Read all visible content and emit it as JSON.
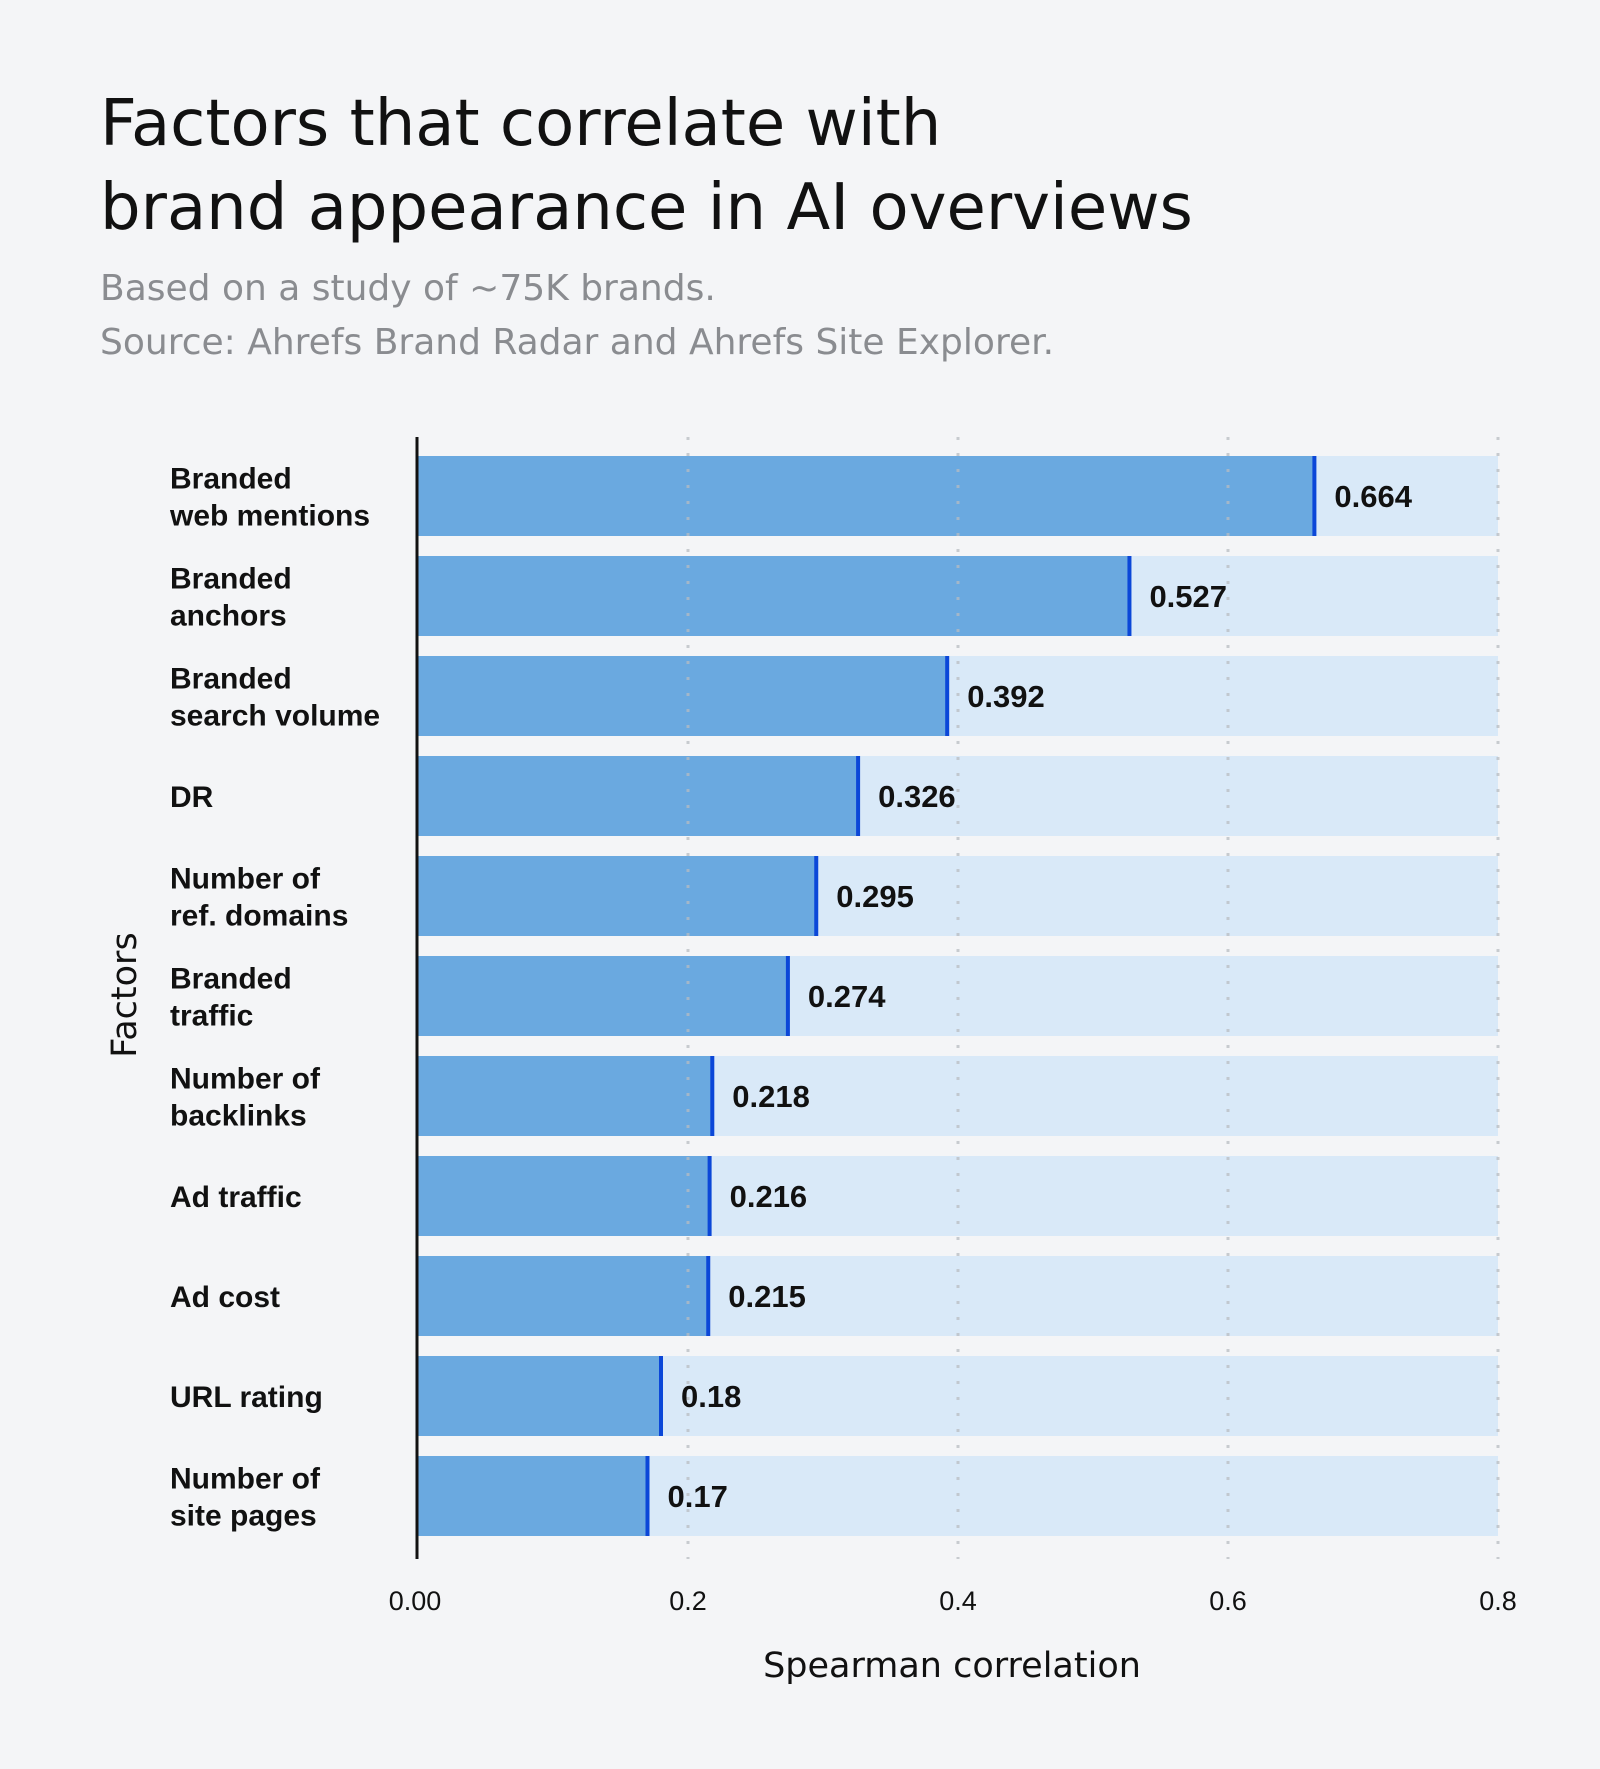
{
  "chart_data": {
    "type": "bar",
    "orientation": "horizontal",
    "title": "Factors that correlate with brand appearance in AI overviews",
    "title_lines": [
      "Factors that correlate with",
      "brand appearance in AI overviews"
    ],
    "subtitle_lines": [
      "Based on a study of ~75K brands.",
      "Source: Ahrefs Brand Radar and Ahrefs Site Explorer."
    ],
    "xlabel": "Spearman correlation",
    "ylabel": "Factors",
    "xlim": [
      0,
      0.8
    ],
    "xticks": [
      "0.00",
      "0.2",
      "0.4",
      "0.6",
      "0.8"
    ],
    "xtick_values": [
      0,
      0.2,
      0.4,
      0.6,
      0.8
    ],
    "grid": "vertical dotted",
    "categories": [
      [
        "Branded",
        "web mentions"
      ],
      [
        "Branded",
        "anchors"
      ],
      [
        "Branded",
        "search volume"
      ],
      [
        "DR"
      ],
      [
        "Number of",
        "ref. domains"
      ],
      [
        "Branded",
        "traffic"
      ],
      [
        "Number of",
        "backlinks"
      ],
      [
        "Ad traffic"
      ],
      [
        "Ad cost"
      ],
      [
        "URL rating"
      ],
      [
        "Number of",
        "site pages"
      ]
    ],
    "values": [
      0.664,
      0.527,
      0.392,
      0.326,
      0.295,
      0.274,
      0.218,
      0.216,
      0.215,
      0.18,
      0.17
    ],
    "value_labels": [
      "0.664",
      "0.527",
      "0.392",
      "0.326",
      "0.295",
      "0.274",
      "0.218",
      "0.216",
      "0.215",
      "0.18",
      "0.17"
    ],
    "colors": {
      "bar": "#6aa9e0",
      "track": "#d9e9f8",
      "bar_edge": "#0b47d8",
      "grid": "#b8bcc2",
      "background": "#f4f5f7"
    }
  }
}
